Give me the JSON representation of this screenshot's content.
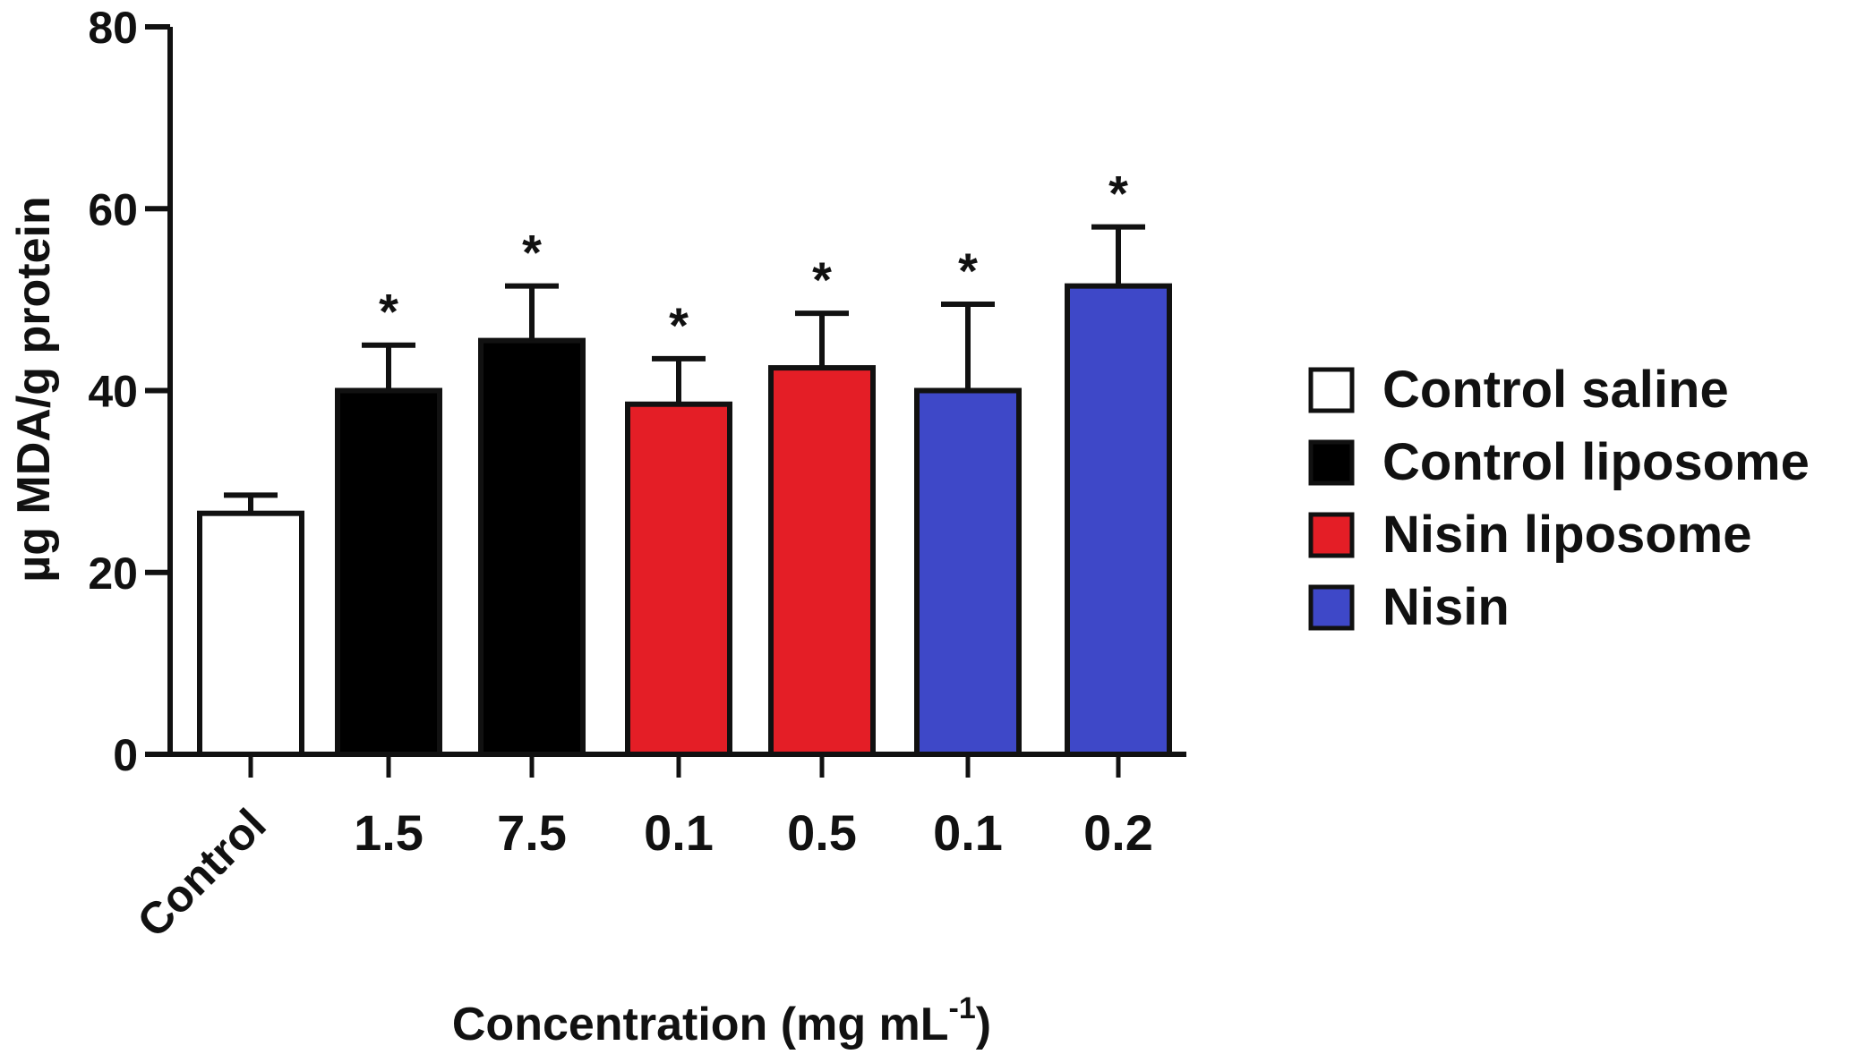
{
  "chart_data": {
    "type": "bar",
    "title": "",
    "xlabel": "Concentration (mg mL",
    "xlabel_superscript": "-1",
    "xlabel_close": ")",
    "ylabel": "µg MDA/g protein",
    "ylim": [
      0,
      80
    ],
    "yticks": [
      "0",
      "20",
      "40",
      "60",
      "80"
    ],
    "grid": false,
    "legend_position": "right",
    "categories": [
      "Control",
      "1.5",
      "7.5",
      "0.1",
      "0.5",
      "0.1",
      "0.2"
    ],
    "groups": [
      "Control saline",
      "Control liposome",
      "Control liposome",
      "Nisin liposome",
      "Nisin liposome",
      "Nisin",
      "Nisin"
    ],
    "values": [
      26.5,
      40,
      45.5,
      38.5,
      42.5,
      40,
      51.5
    ],
    "errors": [
      2,
      5,
      6,
      5,
      6,
      9.5,
      6.5
    ],
    "significance": [
      "",
      "*",
      "*",
      "*",
      "*",
      "*",
      "*"
    ],
    "legend": [
      {
        "label": "Control saline",
        "color": "#ffffff"
      },
      {
        "label": "Control liposome",
        "color": "#000000"
      },
      {
        "label": "Nisin liposome",
        "color": "#e41e26"
      },
      {
        "label": "Nisin",
        "color": "#3e48c8"
      }
    ]
  }
}
